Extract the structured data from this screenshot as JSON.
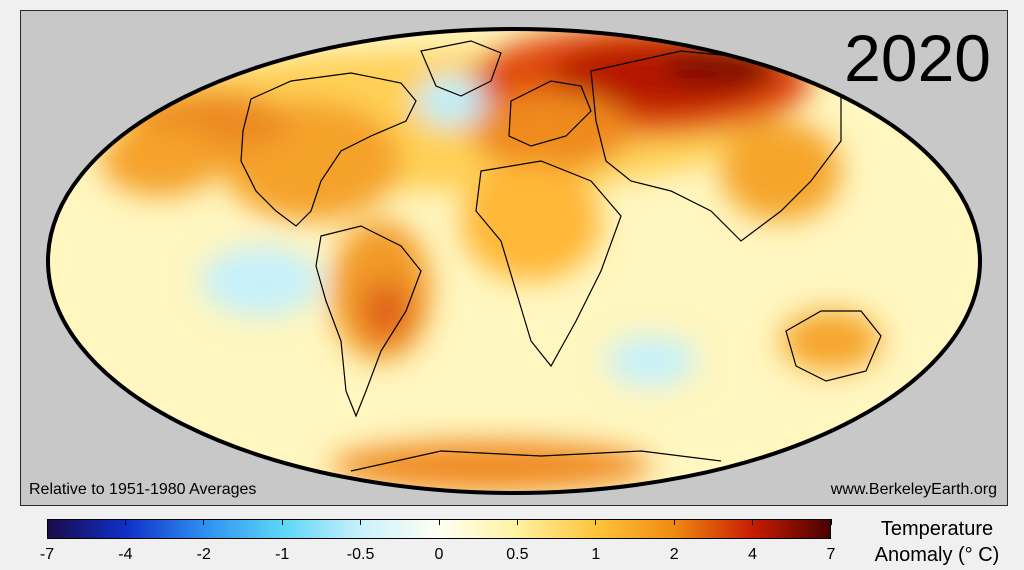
{
  "map": {
    "year": "2020",
    "baseline_note": "Relative to 1951-1980 Averages",
    "source": "www.BerkeleyEarth.org",
    "projection": "Mollweide",
    "ocean_background": "#c8c8c8"
  },
  "legend": {
    "title_line1": "Temperature",
    "title_line2": "Anomaly (° C)",
    "ticks": [
      "-7",
      "-4",
      "-2",
      "-1",
      "-0.5",
      "0",
      "0.5",
      "1",
      "2",
      "4",
      "7"
    ],
    "colors": [
      "#1a0a4a",
      "#1030c8",
      "#2f8ff0",
      "#5cd6f7",
      "#c8f2fb",
      "#fffff4",
      "#fff2a0",
      "#ffc43c",
      "#f08a12",
      "#c81e00",
      "#4a0000"
    ]
  }
}
